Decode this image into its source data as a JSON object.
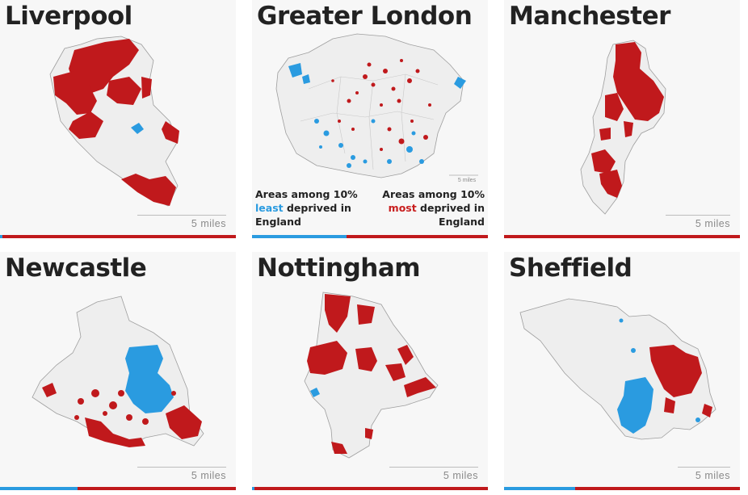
{
  "colors": {
    "least": "#2a9be0",
    "most": "#c0191c",
    "land": "#eeeeee",
    "border": "#9e9e9e"
  },
  "panels": [
    {
      "title": "Liverpool",
      "scale": "5 miles",
      "least_share": 0.01
    },
    {
      "title": "Greater London",
      "scale": "5 miles",
      "least_share": 0.4
    },
    {
      "title": "Manchester",
      "scale": "5 miles",
      "least_share": 0.0
    },
    {
      "title": "Newcastle",
      "scale": "5 miles",
      "least_share": 0.33
    },
    {
      "title": "Nottingham",
      "scale": "5 miles",
      "least_share": 0.01
    },
    {
      "title": "Sheffield",
      "scale": "5 miles",
      "least_share": 0.3
    }
  ],
  "legend": {
    "least_line1": "Areas among 10%",
    "least_word": "least",
    "least_rest": " deprived in",
    "least_line3": "England",
    "most_line1": "Areas among 10%",
    "most_word": "most",
    "most_rest": " deprived in",
    "most_line3": "England"
  }
}
